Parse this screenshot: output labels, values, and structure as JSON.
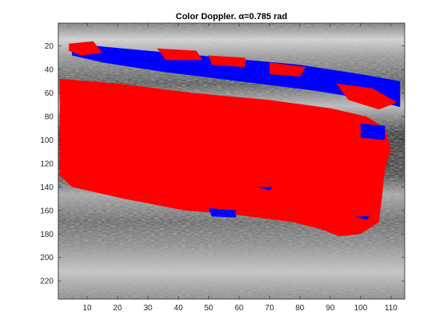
{
  "chart_data": {
    "type": "heatmap",
    "title": "Color Doppler. α=0.785 rad",
    "xlabel": "",
    "ylabel": "",
    "xlim": [
      0.5,
      114.5
    ],
    "ylim": [
      0.5,
      235.5
    ],
    "y_direction": "reversed",
    "x_ticks": [
      10,
      20,
      30,
      40,
      50,
      60,
      70,
      80,
      90,
      100,
      110
    ],
    "y_ticks": [
      20,
      40,
      60,
      80,
      100,
      120,
      140,
      160,
      180,
      200,
      220
    ],
    "grid": false,
    "background": "grayscale B-mode ultrasound texture",
    "overlay_colors": {
      "positive_flow": "#ff0000",
      "negative_flow": "#0000ff"
    },
    "regions": [
      {
        "label": "positive flow (red)",
        "color": "#ff0000",
        "outline": [
          [
            1,
            48
          ],
          [
            20,
            52
          ],
          [
            45,
            60
          ],
          [
            70,
            66
          ],
          [
            90,
            73
          ],
          [
            102,
            80
          ],
          [
            108,
            90
          ],
          [
            110,
            108
          ],
          [
            108,
            125
          ],
          [
            107,
            150
          ],
          [
            106,
            170
          ],
          [
            100,
            180
          ],
          [
            93,
            182
          ],
          [
            87,
            176
          ],
          [
            78,
            170
          ],
          [
            60,
            164
          ],
          [
            42,
            160
          ],
          [
            22,
            150
          ],
          [
            5,
            140
          ],
          [
            1,
            130
          ]
        ]
      },
      {
        "label": "negative flow band (blue)",
        "color": "#0000ff",
        "outline": [
          [
            5,
            18
          ],
          [
            30,
            24
          ],
          [
            55,
            30
          ],
          [
            80,
            36
          ],
          [
            100,
            44
          ],
          [
            113,
            50
          ],
          [
            113,
            72
          ],
          [
            104,
            66
          ],
          [
            85,
            58
          ],
          [
            60,
            50
          ],
          [
            35,
            42
          ],
          [
            15,
            34
          ],
          [
            5,
            28
          ]
        ]
      },
      {
        "label": "red patches in upper band",
        "color": "#ff0000",
        "patches": [
          [
            [
              4,
              18
            ],
            [
              12,
              16
            ],
            [
              15,
              26
            ],
            [
              8,
              28
            ],
            [
              4,
              24
            ]
          ],
          [
            [
              33,
              22
            ],
            [
              46,
              24
            ],
            [
              48,
              32
            ],
            [
              36,
              32
            ]
          ],
          [
            [
              50,
              28
            ],
            [
              62,
              30
            ],
            [
              62,
              38
            ],
            [
              51,
              36
            ]
          ],
          [
            [
              70,
              34
            ],
            [
              82,
              38
            ],
            [
              80,
              46
            ],
            [
              70,
              44
            ]
          ],
          [
            [
              92,
              52
            ],
            [
              104,
              56
            ],
            [
              112,
              68
            ],
            [
              106,
              74
            ],
            [
              96,
              66
            ]
          ]
        ]
      },
      {
        "label": "small blue spots",
        "color": "#0000ff",
        "patches": [
          [
            [
              100,
              86
            ],
            [
              108,
              88
            ],
            [
              108,
              100
            ],
            [
              100,
              98
            ]
          ],
          [
            [
              50,
              158
            ],
            [
              59,
              160
            ],
            [
              59,
              166
            ],
            [
              51,
              165
            ]
          ],
          [
            [
              98,
              165
            ],
            [
              103,
              165
            ],
            [
              102,
              168
            ]
          ],
          [
            [
              66,
              140
            ],
            [
              71,
              140
            ],
            [
              70,
              143
            ]
          ]
        ]
      }
    ]
  }
}
